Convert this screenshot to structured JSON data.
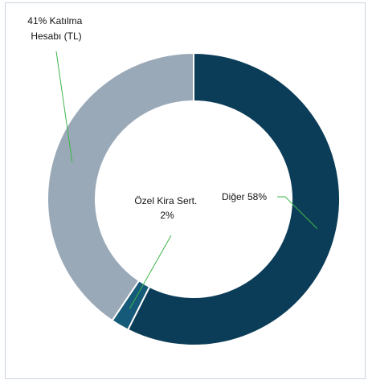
{
  "chart_data": {
    "type": "pie",
    "style": "donut",
    "start_angle_deg": 0,
    "direction": "clockwise",
    "slices": [
      {
        "name": "Diğer",
        "value": 58,
        "color": "#0b3d58",
        "label_lines": [
          "Diğer  58%"
        ]
      },
      {
        "name": "Özel Kira Sert.",
        "value": 2,
        "color": "#155a78",
        "label_lines": [
          "Özel Kira Sert.",
          "2%"
        ]
      },
      {
        "name": "Katılma Hesabı (TL)",
        "value": 41,
        "color": "#9aa9b8",
        "label_lines": [
          "41% Katılma",
          "Hesabı (TL)"
        ]
      }
    ],
    "legend": "none"
  }
}
